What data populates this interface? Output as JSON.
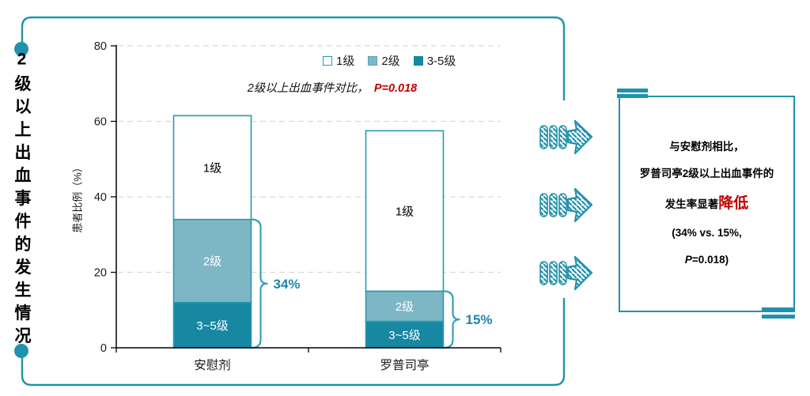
{
  "colors": {
    "teal": "#2191ad",
    "teal_dark": "#1787a2",
    "teal_light": "#7db7c5",
    "bar_border": "#2b98b0",
    "brace": "#3a9fb7",
    "pct_label": "#1f86a8",
    "red": "#c00000",
    "grid": "#d9d9d9",
    "axis": "#000000"
  },
  "left_panel": {
    "title": "2级以上出血事件的发生情况"
  },
  "chart": {
    "y_axis_title": "患者比例（%）",
    "annotation": {
      "prefix": "2级以上出血事件对比，",
      "p_value": "P=0.018"
    },
    "legend": [
      {
        "label": "1级",
        "fill": "#ffffff",
        "border": "#2b98b0"
      },
      {
        "label": "2级",
        "fill": "#7db7c5",
        "border": "#5ba4b6"
      },
      {
        "label": "3-5级",
        "fill": "#1787a2",
        "border": "#1787a2"
      }
    ]
  },
  "chart_data": {
    "type": "bar",
    "subtype": "stacked",
    "categories": [
      "安慰剂",
      "罗普司亭"
    ],
    "series": [
      {
        "name": "3~5级",
        "values": [
          12,
          7
        ],
        "color": "#1787a2",
        "label_color": "#ffffff"
      },
      {
        "name": "2级",
        "values": [
          22,
          8
        ],
        "color": "#7db7c5",
        "label_color": "#ffffff"
      },
      {
        "name": "1级",
        "values": [
          27.5,
          42.5
        ],
        "color": "#ffffff",
        "label_color": "#000000"
      }
    ],
    "totals": [
      61.5,
      57.5
    ],
    "brackets": [
      {
        "category": "安慰剂",
        "value_span": 34,
        "label": "34%"
      },
      {
        "category": "罗普司亭",
        "value_span": 15,
        "label": "15%"
      }
    ],
    "title": "",
    "xlabel": "",
    "ylabel": "患者比例（%）",
    "ylim": [
      0,
      80
    ],
    "yticks": [
      0,
      20,
      40,
      60,
      80
    ],
    "grid": "horizontal-dashed",
    "legend_position": "top-right",
    "legend": [
      "1级",
      "2级",
      "3-5级"
    ]
  },
  "conclusion_box": {
    "line1": "与安慰剂相比，",
    "line2": "罗普司亭2级以上出血事件的",
    "line3_prefix": "发生率显著",
    "line3_highlight": "降低",
    "line4": "(34% vs. 15%,",
    "line5_italic": "P",
    "line5_rest": "=0.018)"
  }
}
